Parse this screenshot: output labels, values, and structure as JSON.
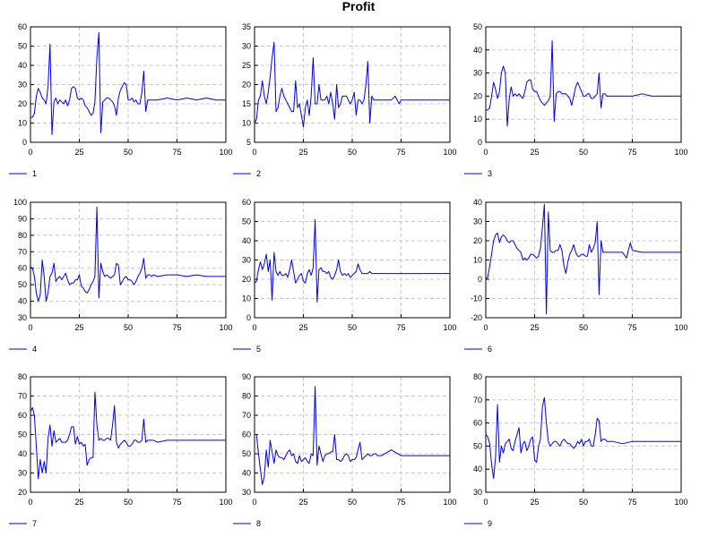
{
  "title": "Profit",
  "chart_data": [
    {
      "type": "line",
      "legend": "1",
      "color": "#0000ee",
      "grid": true,
      "xlim": [
        0,
        100
      ],
      "xticks": [
        0,
        25,
        50,
        75,
        100
      ],
      "ylim": [
        0,
        60
      ],
      "yticks": [
        0,
        10,
        20,
        30,
        40,
        50,
        60
      ],
      "x": [
        0,
        1,
        2,
        3,
        4,
        5,
        6,
        7,
        8,
        9,
        10,
        11,
        12,
        13,
        14,
        15,
        16,
        17,
        18,
        19,
        20,
        21,
        22,
        23,
        24,
        25,
        26,
        27,
        28,
        29,
        30,
        31,
        32,
        33,
        34,
        35,
        36,
        37,
        38,
        39,
        40,
        41,
        42,
        43,
        44,
        45,
        46,
        47,
        48,
        49,
        50,
        51,
        52,
        53,
        54,
        55,
        56,
        57,
        58,
        59,
        60,
        61,
        62,
        63,
        65,
        70,
        75,
        80,
        85,
        90,
        95,
        100
      ],
      "y": [
        13,
        13,
        15,
        24,
        28,
        26,
        23,
        22,
        20,
        29,
        51,
        4,
        21,
        23,
        20,
        22,
        21,
        20,
        22,
        19,
        22,
        28,
        29,
        28,
        23,
        22,
        23,
        22,
        19,
        18,
        16,
        14,
        15,
        21,
        44,
        57,
        5,
        21,
        22,
        23,
        23,
        22,
        21,
        19,
        14,
        23,
        27,
        29,
        31,
        30,
        22,
        22,
        23,
        21,
        22,
        20,
        20,
        26,
        37,
        16,
        22,
        22,
        22,
        22,
        22,
        23,
        22,
        23,
        22,
        23,
        22,
        22
      ]
    },
    {
      "type": "line",
      "legend": "2",
      "color": "#0000ee",
      "grid": true,
      "xlim": [
        0,
        100
      ],
      "xticks": [
        0,
        25,
        50,
        75,
        100
      ],
      "ylim": [
        5,
        35
      ],
      "yticks": [
        5,
        10,
        15,
        20,
        25,
        30,
        35
      ],
      "x": [
        0,
        1,
        2,
        3,
        4,
        5,
        6,
        7,
        8,
        9,
        10,
        11,
        12,
        13,
        14,
        15,
        16,
        17,
        18,
        19,
        20,
        21,
        22,
        23,
        24,
        25,
        26,
        27,
        28,
        29,
        30,
        31,
        32,
        33,
        34,
        35,
        36,
        37,
        38,
        39,
        40,
        41,
        42,
        43,
        44,
        45,
        46,
        47,
        48,
        49,
        50,
        51,
        52,
        53,
        54,
        55,
        56,
        57,
        58,
        59,
        60,
        61,
        62,
        63,
        64,
        65,
        70,
        72,
        74,
        75,
        80,
        85,
        90,
        95,
        100
      ],
      "y": [
        10,
        11,
        16,
        17,
        21,
        17,
        15,
        18,
        22,
        27,
        31,
        13,
        14,
        17,
        19,
        17,
        16,
        15,
        14,
        13,
        13,
        21,
        14,
        15,
        12,
        9,
        14,
        16,
        12,
        17,
        27,
        15,
        15,
        20,
        16,
        16,
        16,
        17,
        15,
        18,
        15,
        11,
        20,
        14,
        15,
        17,
        17,
        17,
        16,
        15,
        16,
        18,
        12,
        16,
        16,
        15,
        16,
        20,
        26,
        10,
        17,
        16,
        16,
        16,
        16,
        16,
        16,
        17,
        15,
        16,
        16,
        16,
        16,
        16,
        16
      ]
    },
    {
      "type": "line",
      "legend": "3",
      "color": "#0000ee",
      "grid": true,
      "xlim": [
        0,
        100
      ],
      "xticks": [
        0,
        25,
        50,
        75,
        100
      ],
      "ylim": [
        0,
        50
      ],
      "yticks": [
        0,
        10,
        20,
        30,
        40,
        50
      ],
      "x": [
        0,
        1,
        2,
        3,
        4,
        5,
        6,
        7,
        8,
        9,
        10,
        11,
        12,
        13,
        14,
        15,
        16,
        17,
        18,
        19,
        20,
        21,
        22,
        23,
        24,
        25,
        26,
        27,
        28,
        29,
        30,
        31,
        32,
        33,
        34,
        35,
        36,
        37,
        38,
        39,
        40,
        41,
        42,
        43,
        44,
        45,
        46,
        47,
        48,
        49,
        50,
        51,
        52,
        53,
        54,
        55,
        56,
        57,
        58,
        59,
        60,
        61,
        62,
        63,
        65,
        70,
        75,
        80,
        85,
        90,
        95,
        100
      ],
      "y": [
        14,
        14,
        15,
        20,
        26,
        23,
        19,
        22,
        30,
        33,
        30,
        7,
        19,
        24,
        20,
        21,
        20,
        21,
        20,
        19,
        22,
        26,
        27,
        27,
        23,
        22,
        22,
        20,
        18,
        17,
        16,
        17,
        18,
        20,
        44,
        9,
        21,
        22,
        22,
        21,
        21,
        21,
        20,
        19,
        16,
        20,
        24,
        26,
        24,
        22,
        20,
        20,
        21,
        21,
        19,
        19,
        20,
        21,
        30,
        15,
        21,
        21,
        20,
        20,
        20,
        20,
        20,
        21,
        20,
        20,
        20,
        20
      ]
    },
    {
      "type": "line",
      "legend": "4",
      "color": "#0000ee",
      "grid": true,
      "xlim": [
        0,
        100
      ],
      "xticks": [
        0,
        25,
        50,
        75,
        100
      ],
      "ylim": [
        30,
        100
      ],
      "yticks": [
        30,
        40,
        50,
        60,
        70,
        80,
        90,
        100
      ],
      "x": [
        0,
        1,
        2,
        3,
        4,
        5,
        6,
        7,
        8,
        9,
        10,
        11,
        12,
        13,
        14,
        15,
        16,
        17,
        18,
        19,
        20,
        21,
        22,
        23,
        24,
        25,
        26,
        27,
        28,
        29,
        30,
        31,
        32,
        33,
        34,
        35,
        36,
        37,
        38,
        39,
        40,
        41,
        42,
        43,
        44,
        45,
        46,
        47,
        48,
        49,
        50,
        51,
        52,
        53,
        54,
        55,
        56,
        57,
        58,
        59,
        60,
        61,
        62,
        63,
        65,
        70,
        75,
        80,
        85,
        90,
        95,
        100
      ],
      "y": [
        61,
        60,
        55,
        45,
        40,
        44,
        65,
        55,
        40,
        45,
        55,
        57,
        63,
        52,
        54,
        55,
        53,
        55,
        57,
        53,
        50,
        51,
        51,
        53,
        53,
        56,
        49,
        48,
        46,
        45,
        47,
        50,
        52,
        55,
        97,
        42,
        63,
        58,
        55,
        56,
        55,
        54,
        55,
        56,
        63,
        62,
        50,
        52,
        54,
        55,
        53,
        53,
        52,
        50,
        52,
        55,
        57,
        60,
        66,
        54,
        56,
        56,
        55,
        56,
        55,
        56,
        56,
        55,
        56,
        55,
        55,
        55
      ]
    },
    {
      "type": "line",
      "legend": "5",
      "color": "#0000ee",
      "grid": true,
      "xlim": [
        0,
        100
      ],
      "xticks": [
        0,
        25,
        50,
        75,
        100
      ],
      "ylim": [
        0,
        60
      ],
      "yticks": [
        0,
        10,
        20,
        30,
        40,
        50,
        60
      ],
      "x": [
        0,
        1,
        2,
        3,
        4,
        5,
        6,
        7,
        8,
        9,
        10,
        11,
        12,
        13,
        14,
        15,
        16,
        17,
        18,
        19,
        20,
        21,
        22,
        23,
        24,
        25,
        26,
        27,
        28,
        29,
        30,
        31,
        32,
        33,
        34,
        35,
        36,
        37,
        38,
        39,
        40,
        41,
        42,
        43,
        44,
        45,
        46,
        47,
        48,
        49,
        50,
        51,
        52,
        53,
        54,
        55,
        56,
        57,
        58,
        59,
        60,
        61,
        62,
        63,
        65,
        70,
        75,
        80,
        85,
        90,
        95,
        100
      ],
      "y": [
        18,
        19,
        25,
        29,
        25,
        28,
        33,
        24,
        30,
        9,
        34,
        24,
        22,
        24,
        22,
        22,
        23,
        21,
        25,
        30,
        24,
        18,
        20,
        22,
        23,
        19,
        18,
        23,
        25,
        22,
        26,
        51,
        8,
        25,
        26,
        24,
        24,
        23,
        24,
        21,
        20,
        22,
        25,
        30,
        24,
        22,
        23,
        22,
        23,
        21,
        22,
        23,
        24,
        28,
        25,
        23,
        23,
        23,
        23,
        24,
        23,
        23,
        23,
        23,
        23,
        23,
        23,
        23,
        23,
        23,
        23,
        23
      ]
    },
    {
      "type": "line",
      "legend": "6",
      "color": "#0000ee",
      "grid": true,
      "xlim": [
        0,
        100
      ],
      "xticks": [
        0,
        25,
        50,
        75,
        100
      ],
      "ylim": [
        -20,
        40
      ],
      "yticks": [
        -20,
        -10,
        0,
        10,
        20,
        30,
        40
      ],
      "x": [
        0,
        1,
        2,
        3,
        4,
        5,
        6,
        7,
        8,
        9,
        10,
        11,
        12,
        13,
        14,
        15,
        16,
        17,
        18,
        19,
        20,
        21,
        22,
        23,
        24,
        25,
        26,
        27,
        28,
        29,
        30,
        31,
        32,
        33,
        34,
        35,
        36,
        37,
        38,
        39,
        40,
        41,
        42,
        43,
        44,
        45,
        46,
        47,
        48,
        49,
        50,
        51,
        52,
        53,
        54,
        55,
        56,
        57,
        58,
        59,
        60,
        61,
        62,
        63,
        65,
        70,
        72,
        74,
        75,
        80,
        85,
        90,
        95,
        100
      ],
      "y": [
        0,
        1,
        7,
        13,
        20,
        23,
        24,
        19,
        22,
        23,
        22,
        20,
        19,
        20,
        20,
        18,
        16,
        15,
        14,
        10,
        11,
        10,
        11,
        13,
        13,
        12,
        11,
        12,
        16,
        27,
        39,
        -18,
        35,
        15,
        14,
        14,
        15,
        15,
        18,
        15,
        7,
        3,
        9,
        13,
        15,
        18,
        14,
        12,
        12,
        13,
        13,
        12,
        12,
        18,
        14,
        16,
        19,
        30,
        -8,
        20,
        14,
        14,
        14,
        14,
        14,
        14,
        11,
        19,
        15,
        14,
        14,
        14,
        14,
        14
      ]
    },
    {
      "type": "line",
      "legend": "7",
      "color": "#0000ee",
      "grid": true,
      "xlim": [
        0,
        100
      ],
      "xticks": [
        0,
        25,
        50,
        75,
        100
      ],
      "ylim": [
        20,
        80
      ],
      "yticks": [
        20,
        30,
        40,
        50,
        60,
        70,
        80
      ],
      "x": [
        0,
        1,
        2,
        3,
        4,
        5,
        6,
        7,
        8,
        9,
        10,
        11,
        12,
        13,
        14,
        15,
        16,
        17,
        18,
        19,
        20,
        21,
        22,
        23,
        24,
        25,
        26,
        27,
        28,
        29,
        30,
        31,
        32,
        33,
        34,
        35,
        36,
        37,
        38,
        39,
        40,
        41,
        42,
        43,
        44,
        45,
        46,
        47,
        48,
        49,
        50,
        51,
        52,
        53,
        54,
        55,
        56,
        57,
        58,
        59,
        60,
        61,
        62,
        63,
        65,
        70,
        75,
        80,
        85,
        90,
        95,
        100
      ],
      "y": [
        62,
        64,
        60,
        44,
        27,
        37,
        30,
        36,
        30,
        48,
        55,
        44,
        52,
        46,
        47,
        48,
        46,
        46,
        46,
        47,
        50,
        54,
        54,
        45,
        49,
        45,
        46,
        44,
        45,
        34,
        37,
        38,
        38,
        72,
        55,
        47,
        48,
        47,
        47,
        48,
        48,
        47,
        55,
        65,
        46,
        43,
        45,
        46,
        47,
        46,
        44,
        44,
        45,
        47,
        47,
        46,
        46,
        47,
        58,
        46,
        47,
        47,
        47,
        47,
        46,
        47,
        47,
        47,
        47,
        47,
        47,
        47
      ]
    },
    {
      "type": "line",
      "legend": "8",
      "color": "#0000ee",
      "grid": true,
      "xlim": [
        0,
        100
      ],
      "xticks": [
        0,
        25,
        50,
        75,
        100
      ],
      "ylim": [
        30,
        90
      ],
      "yticks": [
        30,
        40,
        50,
        60,
        70,
        80,
        90
      ],
      "x": [
        0,
        1,
        2,
        3,
        4,
        5,
        6,
        7,
        8,
        9,
        10,
        11,
        12,
        13,
        14,
        15,
        16,
        17,
        18,
        19,
        20,
        21,
        22,
        23,
        24,
        25,
        26,
        27,
        28,
        29,
        30,
        31,
        32,
        33,
        34,
        35,
        36,
        37,
        38,
        39,
        40,
        41,
        42,
        43,
        44,
        45,
        46,
        47,
        48,
        49,
        50,
        51,
        52,
        53,
        54,
        55,
        56,
        57,
        58,
        59,
        60,
        61,
        62,
        63,
        65,
        70,
        75,
        80,
        85,
        90,
        95,
        100
      ],
      "y": [
        60,
        60,
        50,
        42,
        34,
        38,
        52,
        43,
        57,
        51,
        45,
        52,
        49,
        48,
        48,
        47,
        49,
        51,
        52,
        49,
        50,
        46,
        45,
        49,
        46,
        47,
        48,
        46,
        45,
        50,
        49,
        85,
        44,
        54,
        50,
        46,
        49,
        50,
        50,
        51,
        51,
        60,
        47,
        47,
        46,
        47,
        49,
        50,
        49,
        46,
        47,
        47,
        48,
        52,
        56,
        47,
        48,
        49,
        50,
        49,
        49,
        50,
        50,
        49,
        49,
        52,
        49,
        49,
        49,
        49,
        49,
        49
      ]
    },
    {
      "type": "line",
      "legend": "9",
      "color": "#0000ee",
      "grid": true,
      "xlim": [
        0,
        100
      ],
      "xticks": [
        0,
        25,
        50,
        75,
        100
      ],
      "ylim": [
        30,
        80
      ],
      "yticks": [
        30,
        40,
        50,
        60,
        70,
        80
      ],
      "x": [
        0,
        1,
        2,
        3,
        4,
        5,
        6,
        7,
        8,
        9,
        10,
        11,
        12,
        13,
        14,
        15,
        16,
        17,
        18,
        19,
        20,
        21,
        22,
        23,
        24,
        25,
        26,
        27,
        28,
        29,
        30,
        31,
        32,
        33,
        34,
        35,
        36,
        37,
        38,
        39,
        40,
        41,
        42,
        43,
        44,
        45,
        46,
        47,
        48,
        49,
        50,
        51,
        52,
        53,
        54,
        55,
        56,
        57,
        58,
        59,
        60,
        61,
        62,
        63,
        65,
        70,
        75,
        80,
        85,
        90,
        95,
        100
      ],
      "y": [
        55,
        54,
        51,
        42,
        36,
        45,
        68,
        43,
        50,
        47,
        51,
        52,
        53,
        49,
        48,
        52,
        55,
        58,
        47,
        51,
        52,
        48,
        50,
        53,
        54,
        44,
        43,
        50,
        53,
        67,
        71,
        60,
        52,
        50,
        51,
        52,
        52,
        51,
        50,
        52,
        53,
        52,
        51,
        51,
        50,
        49,
        50,
        52,
        51,
        53,
        50,
        52,
        52,
        53,
        50,
        50,
        55,
        62,
        61,
        52,
        53,
        53,
        52,
        52,
        52,
        51,
        52,
        52,
        52,
        52,
        52,
        52
      ]
    }
  ]
}
